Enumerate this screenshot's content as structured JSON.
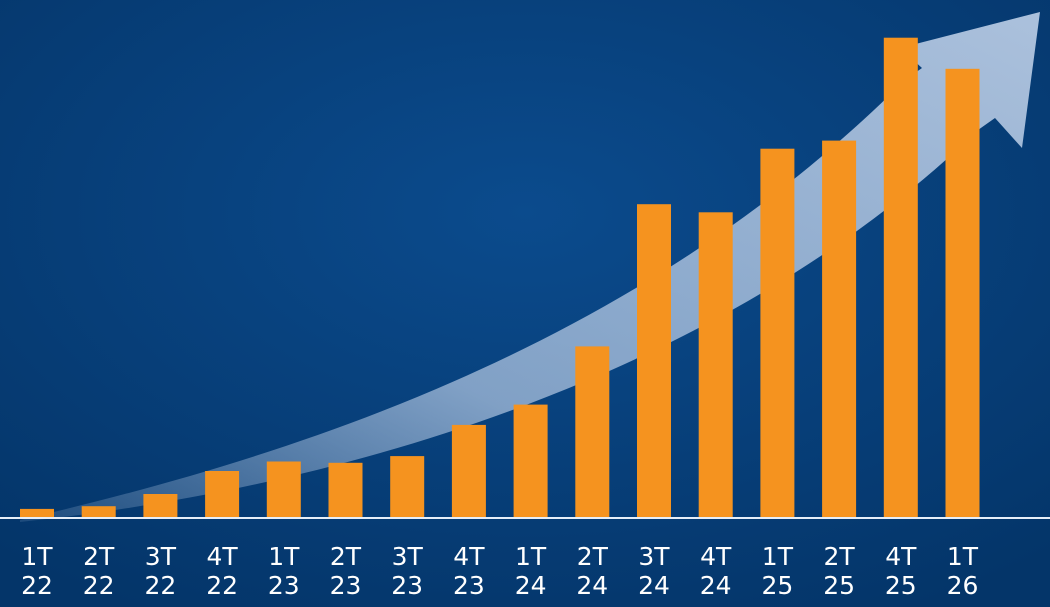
{
  "chart_data": {
    "type": "bar",
    "title": "",
    "xlabel": "",
    "ylabel": "",
    "categories": [
      [
        "1T",
        "22"
      ],
      [
        "2T",
        "22"
      ],
      [
        "3T",
        "22"
      ],
      [
        "4T",
        "22"
      ],
      [
        "1T",
        "23"
      ],
      [
        "2T",
        "23"
      ],
      [
        "3T",
        "23"
      ],
      [
        "4T",
        "23"
      ],
      [
        "1T",
        "24"
      ],
      [
        "2T",
        "24"
      ],
      [
        "3T",
        "24"
      ],
      [
        "4T",
        "24"
      ],
      [
        "1T",
        "25"
      ],
      [
        "2T",
        "25"
      ],
      [
        "4T",
        "25"
      ],
      [
        "1T",
        "26"
      ]
    ],
    "values": [
      6,
      8,
      17,
      34,
      41,
      40,
      45,
      68,
      83,
      126,
      231,
      225,
      272,
      278,
      354,
      331
    ],
    "ylim": [
      0,
      370
    ],
    "grid": false,
    "legend": "none",
    "axes_visible": false,
    "colors": {
      "background": "#053a72",
      "bar": "#f5931f",
      "arrow": "#a9c0dd",
      "baseline": "#e6eef8",
      "labels": "#ffffff"
    }
  }
}
